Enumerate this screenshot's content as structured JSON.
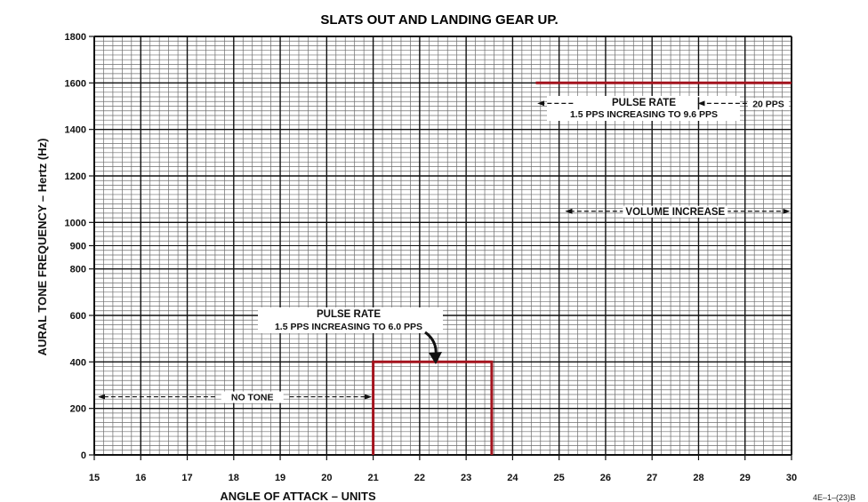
{
  "chart_data": {
    "type": "line",
    "title": "SLATS OUT AND LANDING GEAR UP.",
    "xlabel": "ANGLE OF ATTACK – UNITS",
    "ylabel": "AURAL TONE FREQUENCY – Hertz (Hz)",
    "xlim": [
      15,
      30
    ],
    "ylim": [
      0,
      1800
    ],
    "x_ticks": [
      15,
      16,
      17,
      18,
      19,
      20,
      21,
      22,
      23,
      24,
      25,
      26,
      27,
      28,
      29,
      30
    ],
    "y_ticks": [
      0,
      200,
      400,
      600,
      800,
      900,
      1000,
      1200,
      1400,
      1600,
      1800
    ],
    "grid": true,
    "series": [
      {
        "x": [
          21,
          21,
          23.55,
          23.55
        ],
        "y": [
          0,
          400,
          400,
          0
        ],
        "color": "#a3131d"
      },
      {
        "x": [
          24.5,
          30
        ],
        "y": [
          1600,
          1600
        ],
        "color": "#a3131d"
      }
    ],
    "annotations": {
      "pulse_rate_low_title": "PULSE RATE",
      "pulse_rate_low_text": "1.5 PPS INCREASING TO 6.0 PPS",
      "pulse_rate_high_title": "PULSE RATE",
      "pulse_rate_high_text": "1.5 PPS INCREASING TO 9.6 PPS",
      "pulse_rate_max": "20 PPS",
      "volume_increase": "VOLUME INCREASE",
      "no_tone": "NO TONE"
    },
    "reference_number": "4E–1–(23)B"
  }
}
